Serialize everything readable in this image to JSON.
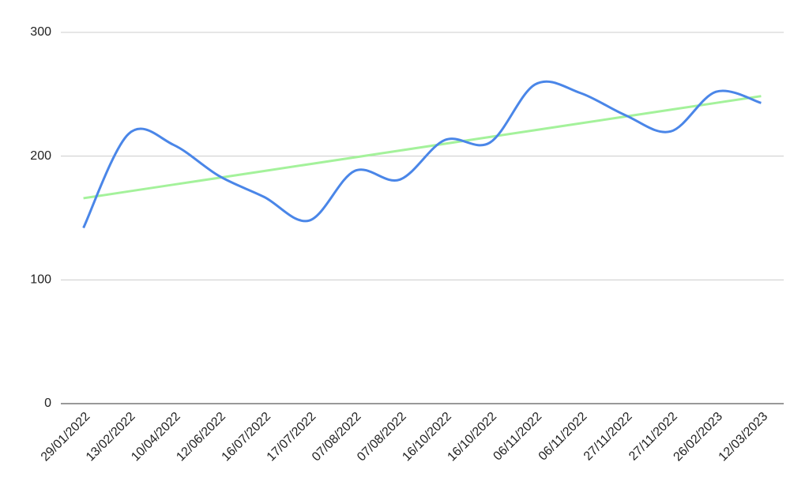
{
  "chart_data": {
    "type": "line",
    "categories": [
      "29/01/2022",
      "13/02/2022",
      "10/04/2022",
      "12/06/2022",
      "16/07/2022",
      "17/07/2022",
      "07/08/2022",
      "07/08/2022",
      "16/10/2022",
      "16/10/2022",
      "06/11/2022",
      "06/11/2022",
      "27/11/2022",
      "27/11/2022",
      "26/02/2023",
      "12/03/2023"
    ],
    "series": [
      {
        "color": "#4a86e8",
        "smooth": true,
        "values": [
          142,
          218,
          209,
          184,
          167,
          148,
          188,
          181,
          213,
          211,
          258,
          251,
          233,
          220,
          252,
          243
        ]
      },
      {
        "color": "#a4f29b",
        "smooth": false,
        "values": [
          166,
          171.5,
          177,
          182.5,
          188,
          193.5,
          199,
          204.5,
          210,
          215.5,
          221,
          226.5,
          232,
          237.5,
          243,
          248.5
        ]
      }
    ],
    "ylim": [
      0,
      300
    ],
    "yticks": [
      0,
      100,
      200,
      300
    ],
    "grid": true
  }
}
